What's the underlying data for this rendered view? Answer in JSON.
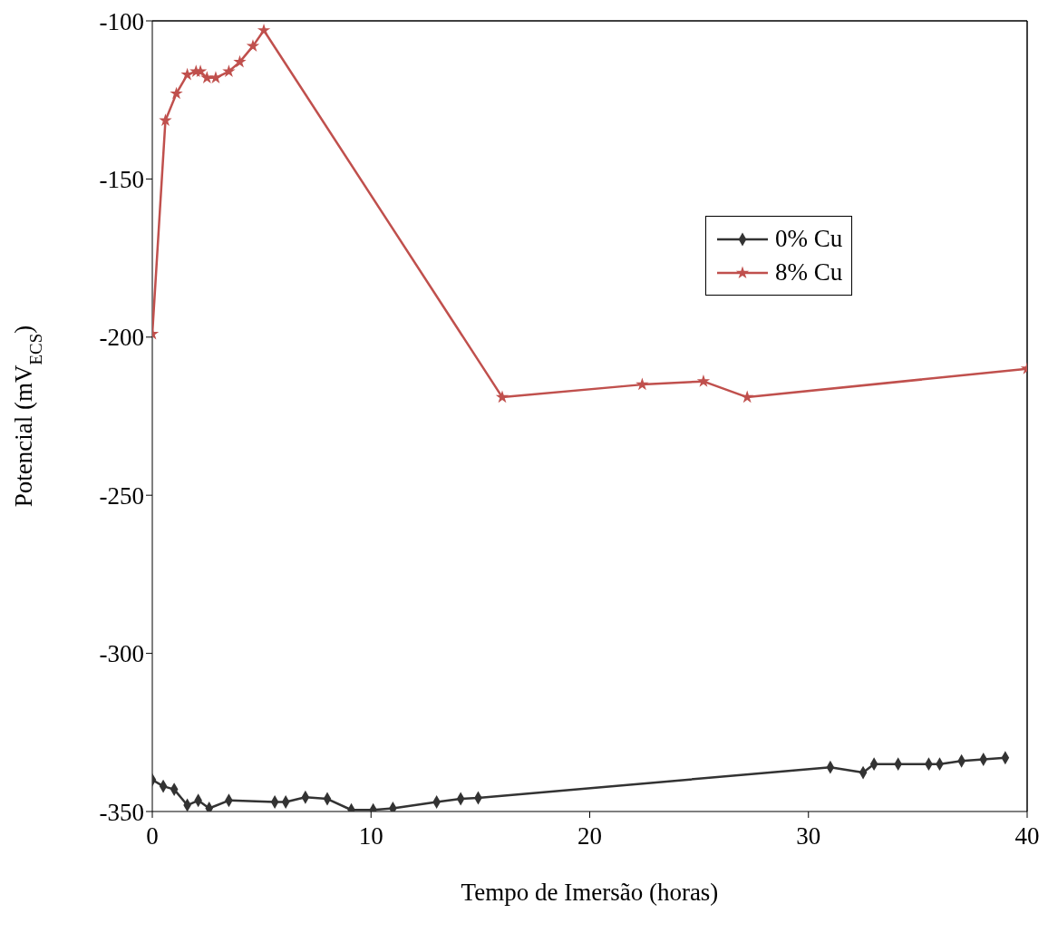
{
  "chart_data": {
    "type": "line",
    "xlabel": "Tempo de Imersão (horas)",
    "ylabel": "Potencial (mV$_{ECS}$)",
    "xlim": [
      0,
      40
    ],
    "xticks": [
      0,
      10,
      20,
      30,
      40
    ],
    "ylim": [
      -350,
      -100
    ],
    "yticks": [
      -100,
      -150,
      -200,
      -250,
      -300,
      -350
    ],
    "grid": false,
    "legend": "right",
    "series": [
      {
        "name": "0% Cu",
        "color": "#333333",
        "marker": "diamond",
        "x": [
          0,
          0.5,
          1,
          1.6,
          2.1,
          2.6,
          3.5,
          5.6,
          6.1,
          7,
          8,
          9.1,
          10.1,
          11,
          13,
          14.1,
          14.9,
          31,
          32.5,
          33,
          34.1,
          35.5,
          36,
          37,
          38,
          39
        ],
        "values": [
          -340,
          -342,
          -343,
          -348,
          -346.5,
          -349,
          -346.5,
          -347,
          -347,
          -345.5,
          -346,
          -349.5,
          -349.5,
          -349,
          -347,
          -346,
          -345.7,
          -336,
          -337.7,
          -335,
          -335,
          -335,
          -335,
          -334,
          -333.5,
          -333
        ]
      },
      {
        "name": "8% Cu",
        "color": "#c0504d",
        "marker": "star",
        "x": [
          0,
          0.6,
          1.1,
          1.6,
          2,
          2.2,
          2.5,
          2.9,
          3.5,
          4,
          4.6,
          5.1,
          16,
          22.4,
          25.2,
          27.2,
          40
        ],
        "values": [
          -199,
          -131.5,
          -123,
          -117,
          -116,
          -116,
          -118,
          -118,
          -116,
          -113,
          -108,
          -103,
          -219,
          -215,
          -214,
          -219,
          -210
        ]
      }
    ]
  }
}
